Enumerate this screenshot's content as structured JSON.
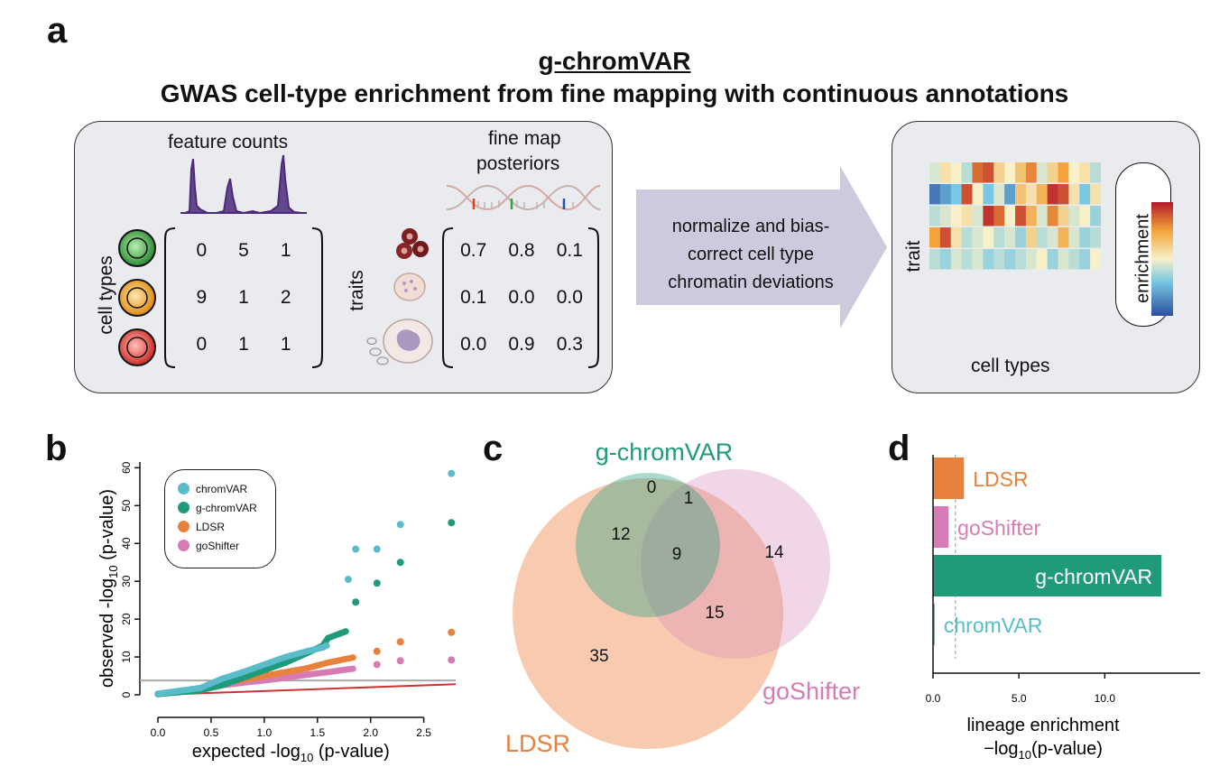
{
  "panels": {
    "a": "a",
    "b": "b",
    "c": "c",
    "d": "d"
  },
  "panel_a": {
    "title": "g-chromVAR",
    "subtitle": "GWAS cell-type enrichment from fine mapping with continuous annotations",
    "feature_counts_label": "feature counts",
    "fine_map_label_1": "fine map",
    "fine_map_label_2": "posteriors",
    "cell_types_label": "cell types",
    "traits_label": "traits",
    "counts_matrix": [
      [
        "0",
        "5",
        "1"
      ],
      [
        "9",
        "1",
        "2"
      ],
      [
        "0",
        "1",
        "1"
      ]
    ],
    "posterior_matrix": [
      [
        "0.7",
        "0.8",
        "0.1"
      ],
      [
        "0.1",
        "0.0",
        "0.0"
      ],
      [
        "0.0",
        "0.9",
        "0.3"
      ]
    ],
    "arrow_text": [
      "normalize and bias-",
      "correct cell type",
      "chromatin deviations"
    ],
    "heatmap_ylabel": "trait",
    "heatmap_xlabel": "cell types",
    "heatmap_legend": "enrichment",
    "cell_colors": [
      "#3aa043",
      "#f0a030",
      "#e23a33"
    ],
    "heatmap_values": [
      [
        0.45,
        0.55,
        0.5,
        0.4,
        0.85,
        0.9,
        0.6,
        0.5,
        0.65,
        0.8,
        0.45,
        0.6,
        0.75,
        0.5,
        0.55,
        0.4
      ],
      [
        0.1,
        0.2,
        0.3,
        0.9,
        0.5,
        0.3,
        0.45,
        0.2,
        0.65,
        0.55,
        0.7,
        0.95,
        0.9,
        0.55,
        0.3,
        0.55
      ],
      [
        0.4,
        0.45,
        0.5,
        0.55,
        0.45,
        0.95,
        0.85,
        0.5,
        0.9,
        0.7,
        0.45,
        0.8,
        0.6,
        0.45,
        0.5,
        0.35
      ],
      [
        0.75,
        0.9,
        0.55,
        0.4,
        0.45,
        0.5,
        0.4,
        0.45,
        0.35,
        0.6,
        0.4,
        0.45,
        0.7,
        0.45,
        0.35,
        0.4
      ],
      [
        0.4,
        0.35,
        0.45,
        0.4,
        0.45,
        0.35,
        0.4,
        0.35,
        0.4,
        0.45,
        0.5,
        0.35,
        0.45,
        0.4,
        0.35,
        0.5
      ]
    ]
  },
  "chart_data": [
    {
      "type": "scatter",
      "title": "",
      "xlabel": "expected -log10 (p-value)",
      "ylabel": "observed -log10 (p-value)",
      "xlabel_main": "expected -log",
      "xlabel_sub": "10",
      "xlabel_tail": " (p-value)",
      "ylabel_main": "observed -log",
      "ylabel_sub": "10",
      "ylabel_tail": " (p-value)",
      "xlim": [
        0,
        2.8
      ],
      "ylim": [
        0,
        62
      ],
      "xticks": [
        "0.0",
        "0.5",
        "1.0",
        "1.5",
        "2.0",
        "2.5"
      ],
      "yticks": [
        "0",
        "10",
        "20",
        "30",
        "40",
        "50",
        "60"
      ],
      "legend_position": "top-left",
      "series": [
        {
          "name": "chromVAR",
          "color": "#5bbcc9",
          "points": [
            [
              1.79,
              30.5
            ],
            [
              1.86,
              38.5
            ],
            [
              2.06,
              38.5
            ],
            [
              2.28,
              45.0
            ],
            [
              2.76,
              58.5
            ]
          ],
          "curve": [
            [
              0.0,
              0.3
            ],
            [
              0.4,
              1.8
            ],
            [
              0.6,
              4.2
            ],
            [
              0.8,
              6.0
            ],
            [
              1.0,
              8.0
            ],
            [
              1.2,
              10.0
            ],
            [
              1.4,
              11.5
            ],
            [
              1.55,
              12.5
            ],
            [
              1.6,
              13.2
            ]
          ]
        },
        {
          "name": "g-chromVAR",
          "color": "#1f9a7b",
          "points": [
            [
              1.86,
              24.5
            ],
            [
              2.06,
              29.5
            ],
            [
              2.28,
              35.0
            ],
            [
              2.76,
              45.5
            ]
          ],
          "curve": [
            [
              0.0,
              0.2
            ],
            [
              0.4,
              1.2
            ],
            [
              0.6,
              2.5
            ],
            [
              0.8,
              4.5
            ],
            [
              1.0,
              6.5
            ],
            [
              1.2,
              8.5
            ],
            [
              1.4,
              11.0
            ],
            [
              1.55,
              13.0
            ],
            [
              1.6,
              15.0
            ],
            [
              1.79,
              17.0
            ]
          ]
        },
        {
          "name": "LDSR",
          "color": "#e8813b",
          "points": [
            [
              2.06,
              11.5
            ],
            [
              2.28,
              14.0
            ],
            [
              2.76,
              16.5
            ]
          ],
          "curve": [
            [
              0.0,
              0.2
            ],
            [
              0.4,
              1.8
            ],
            [
              0.6,
              3.0
            ],
            [
              0.8,
              4.0
            ],
            [
              1.0,
              5.0
            ],
            [
              1.2,
              6.0
            ],
            [
              1.4,
              7.0
            ],
            [
              1.6,
              8.5
            ],
            [
              1.86,
              10.0
            ]
          ]
        },
        {
          "name": "goShifter",
          "color": "#d77bb4",
          "points": [
            [
              2.06,
              8.0
            ],
            [
              2.28,
              9.0
            ],
            [
              2.76,
              9.2
            ]
          ],
          "curve": [
            [
              0.0,
              0.2
            ],
            [
              0.4,
              1.5
            ],
            [
              0.6,
              2.5
            ],
            [
              0.8,
              3.2
            ],
            [
              1.0,
              3.8
            ],
            [
              1.2,
              4.5
            ],
            [
              1.4,
              5.3
            ],
            [
              1.6,
              6.0
            ],
            [
              1.86,
              7.0
            ]
          ]
        }
      ],
      "reference_lines": [
        {
          "kind": "threshold",
          "y": 3.8,
          "color": "#aaaaaa"
        },
        {
          "kind": "identity",
          "color": "#d03030"
        }
      ]
    },
    {
      "type": "venn",
      "sets": [
        {
          "name": "g-chromVAR",
          "color": "#1f9a7b"
        },
        {
          "name": "LDSR",
          "color": "#e8813b"
        },
        {
          "name": "goShifter",
          "color": "#d77bb4"
        }
      ],
      "regions": {
        "g_only": "0",
        "g_gs": "1",
        "g_ldsr": "12",
        "all": "9",
        "gs_only": "14",
        "ldsr_gs": "15",
        "ldsr_only": "35"
      }
    },
    {
      "type": "bar",
      "orientation": "horizontal",
      "categories": [
        "LDSR",
        "goShifter",
        "g-chromVAR",
        "chromVAR"
      ],
      "values": [
        1.8,
        0.9,
        13.3,
        0.1
      ],
      "colors": [
        "#e8813b",
        "#d77bb4",
        "#1f9a7b",
        "#5bbcc9"
      ],
      "xlim": [
        0,
        14.5
      ],
      "xticks": [
        "0.0",
        "5.0",
        "10.0"
      ],
      "threshold": 1.3,
      "xlabel": "lineage enrichment -log10 (p-value)",
      "xlabel_line1": "lineage enrichment",
      "xlabel_main": "−log",
      "xlabel_sub": "10",
      "xlabel_tail": "(p-value)"
    }
  ]
}
